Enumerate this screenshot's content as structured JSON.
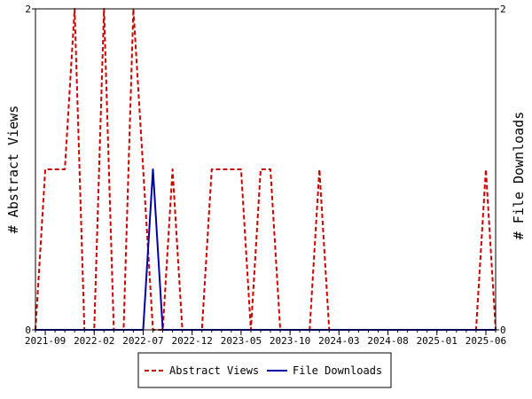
{
  "chart_data": {
    "type": "line",
    "title": "",
    "xlabel": "",
    "ylabel_left": "# Abstract Views",
    "ylabel_right": "# File Downloads",
    "ylim_left": [
      0,
      2
    ],
    "ylim_right": [
      0,
      2
    ],
    "yticks_left": [
      "0",
      "2"
    ],
    "yticks_right": [
      "0",
      "2"
    ],
    "grid": false,
    "legend_position": "bottom-center",
    "x": [
      "2021-08",
      "2021-09",
      "2021-10",
      "2021-11",
      "2021-12",
      "2022-01",
      "2022-02",
      "2022-03",
      "2022-04",
      "2022-05",
      "2022-06",
      "2022-07",
      "2022-08",
      "2022-09",
      "2022-10",
      "2022-11",
      "2022-12",
      "2023-01",
      "2023-02",
      "2023-03",
      "2023-04",
      "2023-05",
      "2023-06",
      "2023-07",
      "2023-08",
      "2023-09",
      "2023-10",
      "2023-11",
      "2023-12",
      "2024-01",
      "2024-02",
      "2024-03",
      "2024-04",
      "2024-05",
      "2024-06",
      "2024-07",
      "2024-08",
      "2024-09",
      "2024-10",
      "2024-11",
      "2024-12",
      "2025-01",
      "2025-02",
      "2025-03",
      "2025-04",
      "2025-05",
      "2025-06",
      "2025-07"
    ],
    "x_tick_labels": [
      "2021-09",
      "2022-02",
      "2022-07",
      "2022-12",
      "2023-05",
      "2023-10",
      "2024-03",
      "2024-08",
      "2025-01",
      "2025-06"
    ],
    "series": [
      {
        "name": "Abstract Views",
        "color": "#cc0000",
        "dash": "dashed",
        "axis": "left",
        "values": [
          0,
          1,
          1,
          1,
          2,
          0,
          0,
          2,
          0,
          0,
          2,
          1,
          0,
          0,
          1,
          0,
          0,
          0,
          1,
          1,
          1,
          1,
          0,
          1,
          1,
          0,
          0,
          0,
          0,
          1,
          0,
          0,
          0,
          0,
          0,
          0,
          0,
          0,
          0,
          0,
          0,
          0,
          0,
          0,
          0,
          0,
          1,
          0
        ]
      },
      {
        "name": "File Downloads",
        "color": "#0000aa",
        "dash": "solid",
        "axis": "right",
        "values": [
          0,
          0,
          0,
          0,
          0,
          0,
          0,
          0,
          0,
          0,
          0,
          0,
          1,
          0,
          0,
          0,
          0,
          0,
          0,
          0,
          0,
          0,
          0,
          0,
          0,
          0,
          0,
          0,
          0,
          0,
          0,
          0,
          0,
          0,
          0,
          0,
          0,
          0,
          0,
          0,
          0,
          0,
          0,
          0,
          0,
          0,
          0,
          0
        ]
      }
    ]
  }
}
